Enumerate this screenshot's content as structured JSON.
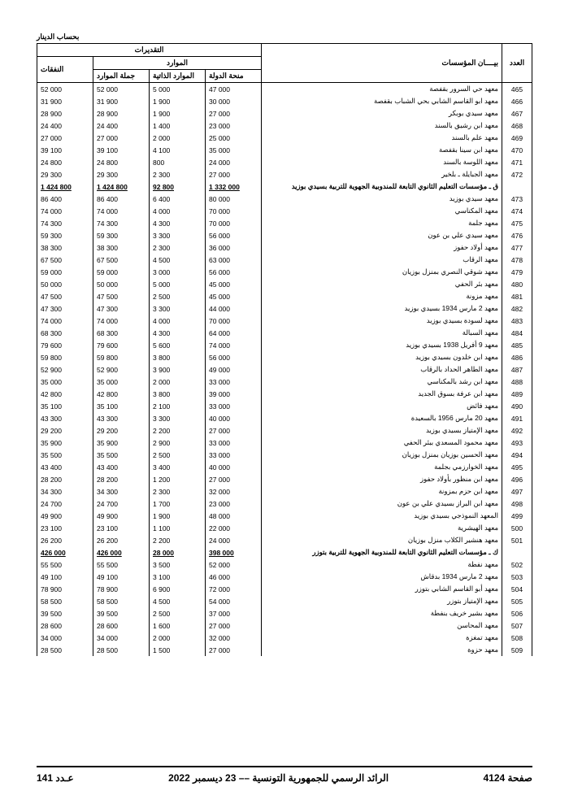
{
  "unit_label": "بحساب الدينار",
  "headers": {
    "num": "العدد",
    "name": "بيــــان المؤسسات",
    "estimates": "التقديرات",
    "resources": "الموارد",
    "state_grant": "منحة الدولة",
    "self_resources": "الموارد الذاتية",
    "total_resources": "جملة الموارد",
    "expenses": "النفقات"
  },
  "rows": [
    {
      "n": "465",
      "name": "معهد حي السرور بقفصة",
      "v": [
        "47 000",
        "5 000",
        "52 000",
        "52 000"
      ]
    },
    {
      "n": "466",
      "name": "معهد ابو القاسم الشابي بحي الشباب بقفصة",
      "v": [
        "30 000",
        "1 900",
        "31 900",
        "31 900"
      ]
    },
    {
      "n": "467",
      "name": "معهد سيدي بوبكر",
      "v": [
        "27 000",
        "1 900",
        "28 900",
        "28 900"
      ]
    },
    {
      "n": "468",
      "name": "معهد ابن رشيق بالسند",
      "v": [
        "23 000",
        "1 400",
        "24 400",
        "24 400"
      ]
    },
    {
      "n": "469",
      "name": "معهد علم بالسند",
      "v": [
        "25 000",
        "2 000",
        "27 000",
        "27 000"
      ]
    },
    {
      "n": "470",
      "name": "معهد ابن سينا بقفصة",
      "v": [
        "35 000",
        "4 100",
        "39 100",
        "39 100"
      ]
    },
    {
      "n": "471",
      "name": "معهد اللوسة بالسند",
      "v": [
        "24 000",
        "800",
        "24 800",
        "24 800"
      ]
    },
    {
      "n": "472",
      "name": "معهد الجبايلة ـ بلخير",
      "v": [
        "27 000",
        "2 300",
        "29 300",
        "29 300"
      ]
    },
    {
      "n": "",
      "name": "ق ـ مؤسسات التعليم الثانوي التابعة للمندوبية الجهوية للتربية بسيدي بوزيد",
      "v": [
        "1 332 000",
        "92 800",
        "1 424 800",
        "1 424 800"
      ],
      "bold": true
    },
    {
      "n": "473",
      "name": "معهد سيدي بوزيد",
      "v": [
        "80 000",
        "6 400",
        "86 400",
        "86 400"
      ]
    },
    {
      "n": "474",
      "name": "معهد المكناسي",
      "v": [
        "70 000",
        "4 000",
        "74 000",
        "74 000"
      ]
    },
    {
      "n": "475",
      "name": "معهد جلمة",
      "v": [
        "70 000",
        "4 300",
        "74 300",
        "74 300"
      ]
    },
    {
      "n": "476",
      "name": "معهد سيدي علي بن عون",
      "v": [
        "56 000",
        "3 300",
        "59 300",
        "59 300"
      ]
    },
    {
      "n": "477",
      "name": "معهد أولاد حفوز",
      "v": [
        "36 000",
        "2 300",
        "38 300",
        "38 300"
      ]
    },
    {
      "n": "478",
      "name": "معهد الرقاب",
      "v": [
        "63 000",
        "4 500",
        "67 500",
        "67 500"
      ]
    },
    {
      "n": "479",
      "name": "معهد شوقي النصري بمنزل بوزيان",
      "v": [
        "56 000",
        "3 000",
        "59 000",
        "59 000"
      ]
    },
    {
      "n": "480",
      "name": "معهد بئر الحفي",
      "v": [
        "45 000",
        "5 000",
        "50 000",
        "50 000"
      ]
    },
    {
      "n": "481",
      "name": "معهد مزونة",
      "v": [
        "45 000",
        "2 500",
        "47 500",
        "47 500"
      ]
    },
    {
      "n": "482",
      "name": "معهد 2 مارس 1934 بسيدي بوزيد",
      "v": [
        "44 000",
        "3 300",
        "47 300",
        "47 300"
      ]
    },
    {
      "n": "483",
      "name": "معهد لسودة بسيدي بوزيد",
      "v": [
        "70 000",
        "4 000",
        "74 000",
        "74 000"
      ]
    },
    {
      "n": "484",
      "name": "معهد السبالة",
      "v": [
        "64 000",
        "4 300",
        "68 300",
        "68 300"
      ]
    },
    {
      "n": "485",
      "name": "معهد 9 أفريل 1938 بسيدي بوزيد",
      "v": [
        "74 000",
        "5 600",
        "79 600",
        "79 600"
      ]
    },
    {
      "n": "486",
      "name": "معهد ابن خلدون بسيدي بوزيد",
      "v": [
        "56 000",
        "3 800",
        "59 800",
        "59 800"
      ]
    },
    {
      "n": "487",
      "name": "معهد الطاهر الحداد بالرقاب",
      "v": [
        "49 000",
        "3 900",
        "52 900",
        "52 900"
      ]
    },
    {
      "n": "488",
      "name": "معهد ابن رشد بالمكناسي",
      "v": [
        "33 000",
        "2 000",
        "35 000",
        "35 000"
      ]
    },
    {
      "n": "489",
      "name": "معهد ابن عرفة بسوق الجديد",
      "v": [
        "39 000",
        "3 800",
        "42 800",
        "42 800"
      ]
    },
    {
      "n": "490",
      "name": "معهد فائض",
      "v": [
        "33 000",
        "2 100",
        "35 100",
        "35 100"
      ]
    },
    {
      "n": "491",
      "name": "معهد 20 مارس 1956 بالسعيدة",
      "v": [
        "40 000",
        "3 300",
        "43 300",
        "43 300"
      ]
    },
    {
      "n": "492",
      "name": "معهد الإمتياز بسيدي بوزيد",
      "v": [
        "27 000",
        "2 200",
        "29 200",
        "29 200"
      ]
    },
    {
      "n": "493",
      "name": "معهد محمود المسعدي ببئر الحفي",
      "v": [
        "33 000",
        "2 900",
        "35 900",
        "35 900"
      ]
    },
    {
      "n": "494",
      "name": "معهد الحسين بوزيان بمنزل بوزيان",
      "v": [
        "33 000",
        "2 500",
        "35 500",
        "35 500"
      ]
    },
    {
      "n": "495",
      "name": "معهد الخوارزمي بجلمة",
      "v": [
        "40 000",
        "3 400",
        "43 400",
        "43 400"
      ]
    },
    {
      "n": "496",
      "name": "معهد ابن منظور بأولاد حفوز",
      "v": [
        "27 000",
        "1 200",
        "28 200",
        "28 200"
      ]
    },
    {
      "n": "497",
      "name": "معهد ابن حزم بمزونة",
      "v": [
        "32 000",
        "2 300",
        "34 300",
        "34 300"
      ]
    },
    {
      "n": "498",
      "name": "معهد ابن البراز بسيدي علي بن عون",
      "v": [
        "23 000",
        "1 700",
        "24 700",
        "24 700"
      ]
    },
    {
      "n": "499",
      "name": "المعهد النموذجي بسيدي بوزيد",
      "v": [
        "48 000",
        "1 900",
        "49 900",
        "49 900"
      ]
    },
    {
      "n": "500",
      "name": "معهد الهيشرية",
      "v": [
        "22 000",
        "1 100",
        "23 100",
        "23 100"
      ]
    },
    {
      "n": "501",
      "name": "معهد هنشير الكلاب منزل بوزيان",
      "v": [
        "24 000",
        "2 200",
        "26 200",
        "26 200"
      ]
    },
    {
      "n": "",
      "name": "ك ـ مؤسسات التعليم الثانوي التابعة للمندوبية الجهوية للتربية بتوزر",
      "v": [
        "398 000",
        "28 000",
        "426 000",
        "426 000"
      ],
      "bold": true
    },
    {
      "n": "502",
      "name": "معهد نفطة",
      "v": [
        "52 000",
        "3 500",
        "55 500",
        "55 500"
      ]
    },
    {
      "n": "503",
      "name": "معهد 2 مارس 1934 بدقاش",
      "v": [
        "46 000",
        "3 100",
        "49 100",
        "49 100"
      ]
    },
    {
      "n": "504",
      "name": "معهد أبو القاسم الشابي بتوزر",
      "v": [
        "72 000",
        "6 900",
        "78 900",
        "78 900"
      ]
    },
    {
      "n": "505",
      "name": "معهد الإمتياز بتوزر",
      "v": [
        "54 000",
        "4 500",
        "58 500",
        "58 500"
      ]
    },
    {
      "n": "506",
      "name": "معهد بشير خريف بنفطة",
      "v": [
        "37 000",
        "2 500",
        "39 500",
        "39 500"
      ]
    },
    {
      "n": "507",
      "name": "معهد المحاسن",
      "v": [
        "27 000",
        "1 600",
        "28 600",
        "28 600"
      ]
    },
    {
      "n": "508",
      "name": "معهد تمغزة",
      "v": [
        "32 000",
        "2 000",
        "34 000",
        "34 000"
      ]
    },
    {
      "n": "509",
      "name": "معهد حزوة",
      "v": [
        "27 000",
        "1 500",
        "28 500",
        "28 500"
      ]
    }
  ],
  "footer": {
    "right": "صفحة 4124",
    "center": "الرائد الرسمي للجمهورية التونسية –– 23 ديسمبر 2022",
    "left": "عـدد 141"
  }
}
